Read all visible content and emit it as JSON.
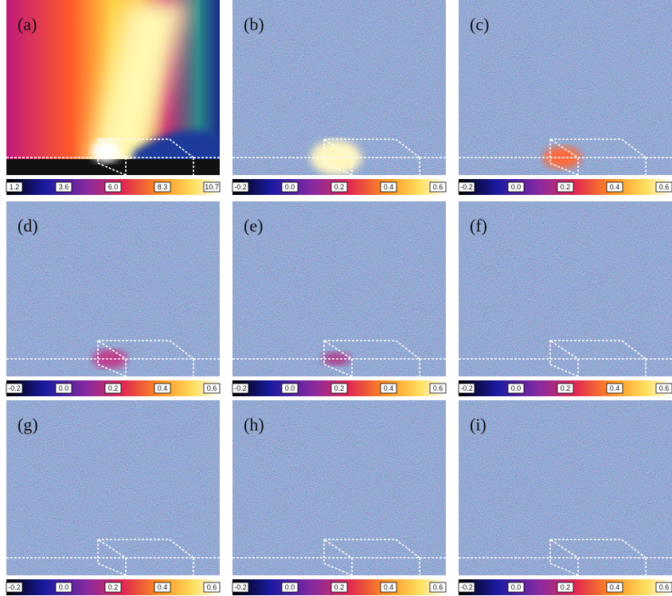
{
  "panels": [
    {
      "label": "(a)",
      "colorbar": [
        "1.2",
        "3.6",
        "6.0",
        "8.3",
        "10.7"
      ]
    },
    {
      "label": "(b)",
      "colorbar": [
        "-0.2",
        "0.0",
        "0.2",
        "0.4",
        "0.6"
      ]
    },
    {
      "label": "(c)",
      "colorbar": [
        "-0.2",
        "0.0",
        "0.2",
        "0.4",
        "0.6"
      ]
    },
    {
      "label": "(d)",
      "colorbar": [
        "-0.2",
        "0.0",
        "0.2",
        "0.4",
        "0.6"
      ]
    },
    {
      "label": "(e)",
      "colorbar": [
        "-0.2",
        "0.0",
        "0.2",
        "0.4",
        "0.6"
      ]
    },
    {
      "label": "(f)",
      "colorbar": [
        "-0.2",
        "0.0",
        "0.2",
        "0.4",
        "0.6"
      ]
    },
    {
      "label": "(g)",
      "colorbar": [
        "-0.2",
        "0.0",
        "0.2",
        "0.4",
        "0.6"
      ]
    },
    {
      "label": "(h)",
      "colorbar": [
        "-0.2",
        "0.0",
        "0.2",
        "0.4",
        "0.6"
      ]
    },
    {
      "label": "(i)",
      "colorbar": [
        "-0.2",
        "0.0",
        "0.2",
        "0.4",
        "0.6"
      ]
    }
  ]
}
